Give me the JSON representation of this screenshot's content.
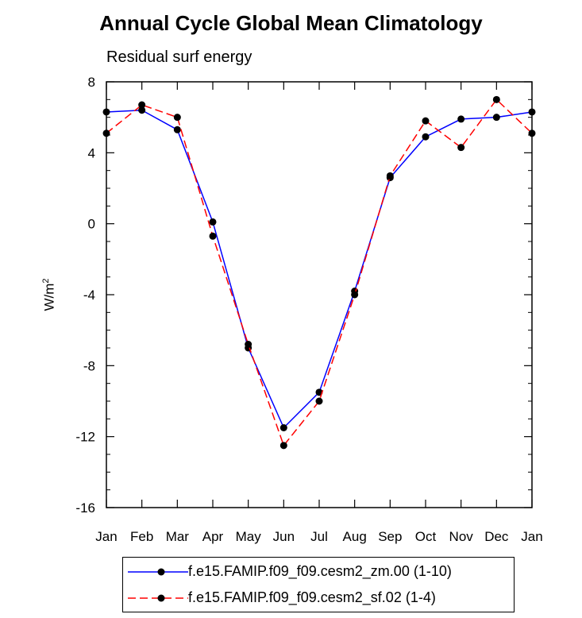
{
  "title": "Annual Cycle Global Mean Climatology",
  "subtitle": "Residual surf energy",
  "ylabel_base": "W/m",
  "ylabel_sup": "2",
  "chart_data": {
    "type": "line",
    "categories": [
      "Jan",
      "Feb",
      "Mar",
      "Apr",
      "May",
      "Jun",
      "Jul",
      "Aug",
      "Sep",
      "Oct",
      "Nov",
      "Dec",
      "Jan"
    ],
    "ylim": [
      -16,
      8
    ],
    "yticks": [
      8,
      4,
      0,
      -4,
      -8,
      -12,
      -16
    ],
    "ytick_labels": [
      "8",
      "4",
      "0",
      "-4",
      "-8",
      "-12",
      "-16"
    ],
    "grid": false,
    "legend_position": "bottom",
    "series": [
      {
        "name": "f.e15.FAMIP.f09_f09.cesm2_zm.00 (1-10)",
        "color": "#0000ff",
        "dash": "solid",
        "values": [
          6.3,
          6.4,
          5.3,
          0.1,
          -7.0,
          -11.5,
          -9.5,
          -3.8,
          2.6,
          4.9,
          5.9,
          6.0,
          6.3
        ]
      },
      {
        "name": "f.e15.FAMIP.f09_f09.cesm2_sf.02 (1-4)",
        "color": "#ff0000",
        "dash": "dashed",
        "values": [
          5.1,
          6.7,
          6.0,
          -0.7,
          -6.8,
          -12.5,
          -10.0,
          -4.0,
          2.7,
          5.8,
          4.3,
          7.0,
          5.1
        ]
      }
    ]
  }
}
